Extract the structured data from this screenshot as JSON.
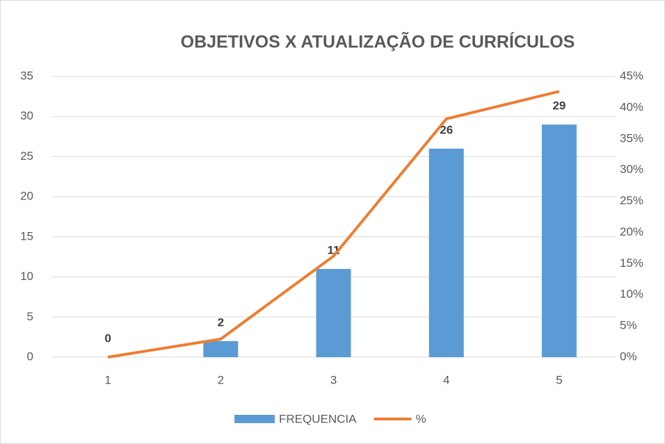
{
  "chart_data": {
    "type": "bar_line",
    "title": "OBJETIVOS X ATUALIZAÇÃO DE CURRÍCULOS",
    "categories": [
      "1",
      "2",
      "3",
      "4",
      "5"
    ],
    "series": [
      {
        "name": "FREQUENCIA",
        "type": "bar",
        "color": "#5b9bd5",
        "values": [
          0,
          2,
          11,
          26,
          29
        ]
      },
      {
        "name": "%",
        "type": "line",
        "axis": "y2",
        "color": "#ed7d31",
        "values": [
          0,
          2.9,
          16.2,
          38.2,
          42.6
        ]
      }
    ],
    "ylim": [
      0,
      35
    ],
    "yticks": [
      0,
      5,
      10,
      15,
      20,
      25,
      30,
      35
    ],
    "y2lim": [
      0,
      45
    ],
    "y2ticks": [
      {
        "value": 0,
        "label": "0%"
      },
      {
        "value": 5,
        "label": "5%"
      },
      {
        "value": 10,
        "label": "10%"
      },
      {
        "value": 15,
        "label": "15%"
      },
      {
        "value": 20,
        "label": "20%"
      },
      {
        "value": 25,
        "label": "25%"
      },
      {
        "value": 30,
        "label": "30%"
      },
      {
        "value": 35,
        "label": "35%"
      },
      {
        "value": 40,
        "label": "40%"
      },
      {
        "value": 45,
        "label": "45%"
      }
    ],
    "grid": true,
    "legend": "bottom"
  }
}
